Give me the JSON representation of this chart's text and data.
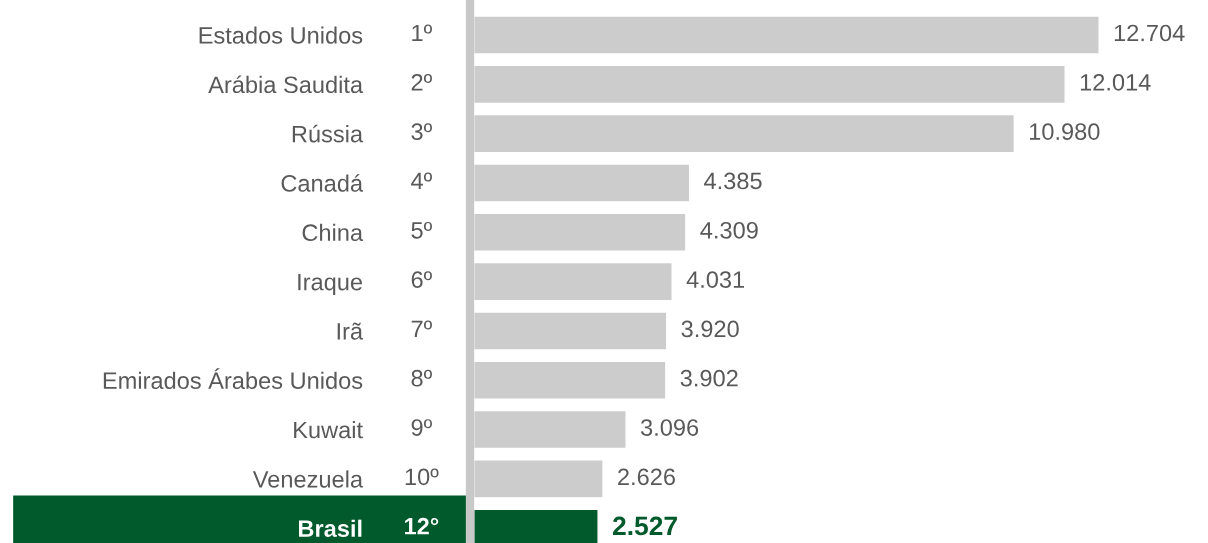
{
  "chart_data": {
    "type": "bar",
    "orientation": "horizontal",
    "categories": [
      "Estados Unidos",
      "Arábia Saudita",
      "Rússia",
      "Canadá",
      "China",
      "Iraque",
      "Irã",
      "Emirados Árabes Unidos",
      "Kuwait",
      "Venezuela",
      "Brasil"
    ],
    "values": [
      12704,
      12014,
      10980,
      4385,
      4309,
      4031,
      3920,
      3902,
      3096,
      2626,
      2527
    ],
    "colors": [
      "#cccccc",
      "#cccccc",
      "#cccccc",
      "#cccccc",
      "#cccccc",
      "#cccccc",
      "#cccccc",
      "#cccccc",
      "#cccccc",
      "#cccccc",
      "#005a2b"
    ],
    "value_labels": [
      "12.704",
      "12.014",
      "10.980",
      "4.385",
      "4.309",
      "4.031",
      "3.920",
      "3.902",
      "3.096",
      "2.626",
      "2.527"
    ],
    "annotations": [
      "1º",
      "2º",
      "3º",
      "4º",
      "5º",
      "6º",
      "7º",
      "8º",
      "9º",
      "10º",
      "12°"
    ],
    "tick_labels": "y",
    "grid": false,
    "legend": false
  }
}
